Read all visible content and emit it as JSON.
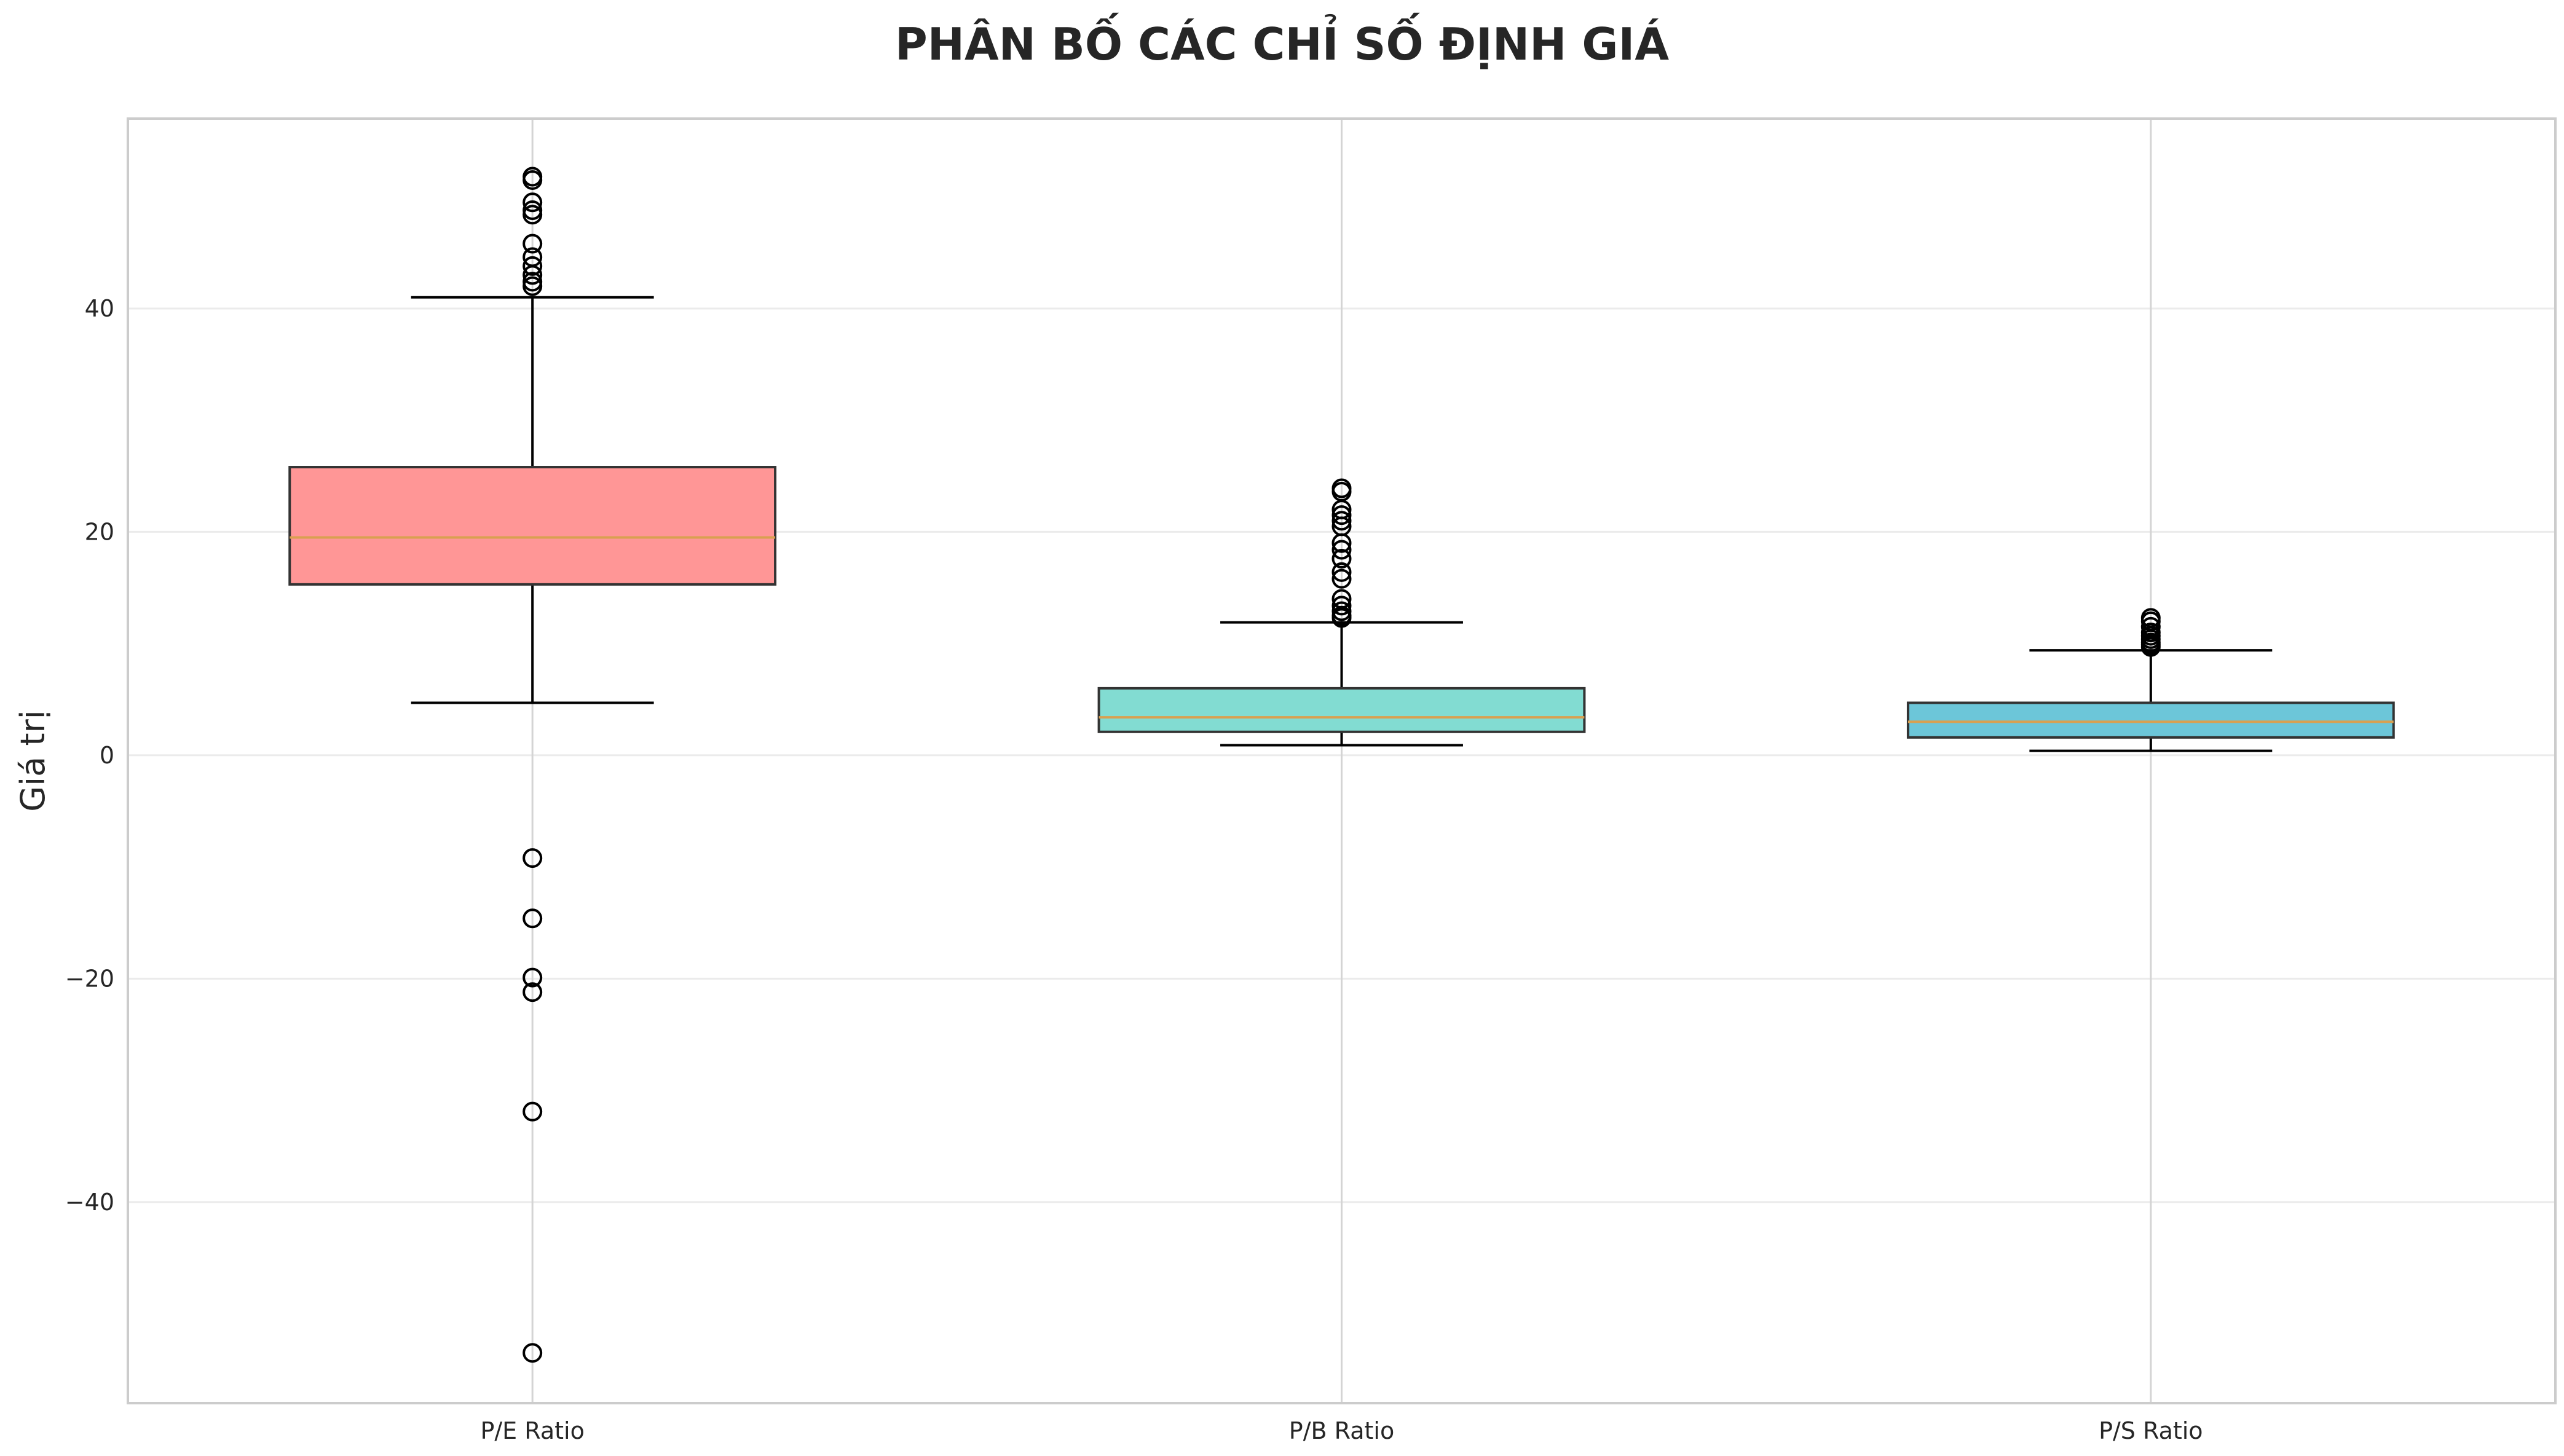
{
  "chart_data": {
    "type": "box",
    "title": "PHÂN BỐ CÁC CHỈ SỐ ĐỊNH GIÁ",
    "xlabel": "",
    "ylabel": "Giá trị",
    "ylim": [
      -58,
      57
    ],
    "yticks": [
      -40,
      -20,
      0,
      20,
      40
    ],
    "ytick_labels": [
      "−40",
      "−20",
      "0",
      "20",
      "40"
    ],
    "grid": true,
    "categories": [
      "P/E Ratio",
      "P/B Ratio",
      "P/S Ratio"
    ],
    "boxes": [
      {
        "name": "P/E Ratio",
        "color": "#ff9696",
        "whisker_low": 4.7,
        "q1": 15.3,
        "median": 19.5,
        "q3": 25.8,
        "whisker_high": 41.0,
        "outliers": [
          51.8,
          51.5,
          49.5,
          48.8,
          48.4,
          45.8,
          44.6,
          43.8,
          43.0,
          42.4,
          42.0,
          -9.2,
          -14.6,
          -19.9,
          -21.2,
          -31.9,
          -53.5
        ]
      },
      {
        "name": "P/B Ratio",
        "color": "#82dcd2",
        "whisker_low": 0.9,
        "q1": 2.1,
        "median": 3.4,
        "q3": 6.0,
        "whisker_high": 11.9,
        "outliers": [
          23.9,
          23.6,
          22.0,
          21.5,
          21.0,
          20.5,
          19.0,
          18.4,
          17.6,
          16.4,
          15.8,
          14.0,
          13.4,
          12.9,
          12.5,
          12.3
        ]
      },
      {
        "name": "P/S Ratio",
        "color": "#6cc6d9",
        "whisker_low": 0.4,
        "q1": 1.6,
        "median": 3.0,
        "q3": 4.7,
        "whisker_high": 9.4,
        "outliers": [
          12.3,
          12.0,
          11.5,
          11.0,
          10.7,
          10.4,
          10.1,
          9.9,
          9.7
        ]
      }
    ],
    "median_color": "#d9a050"
  }
}
